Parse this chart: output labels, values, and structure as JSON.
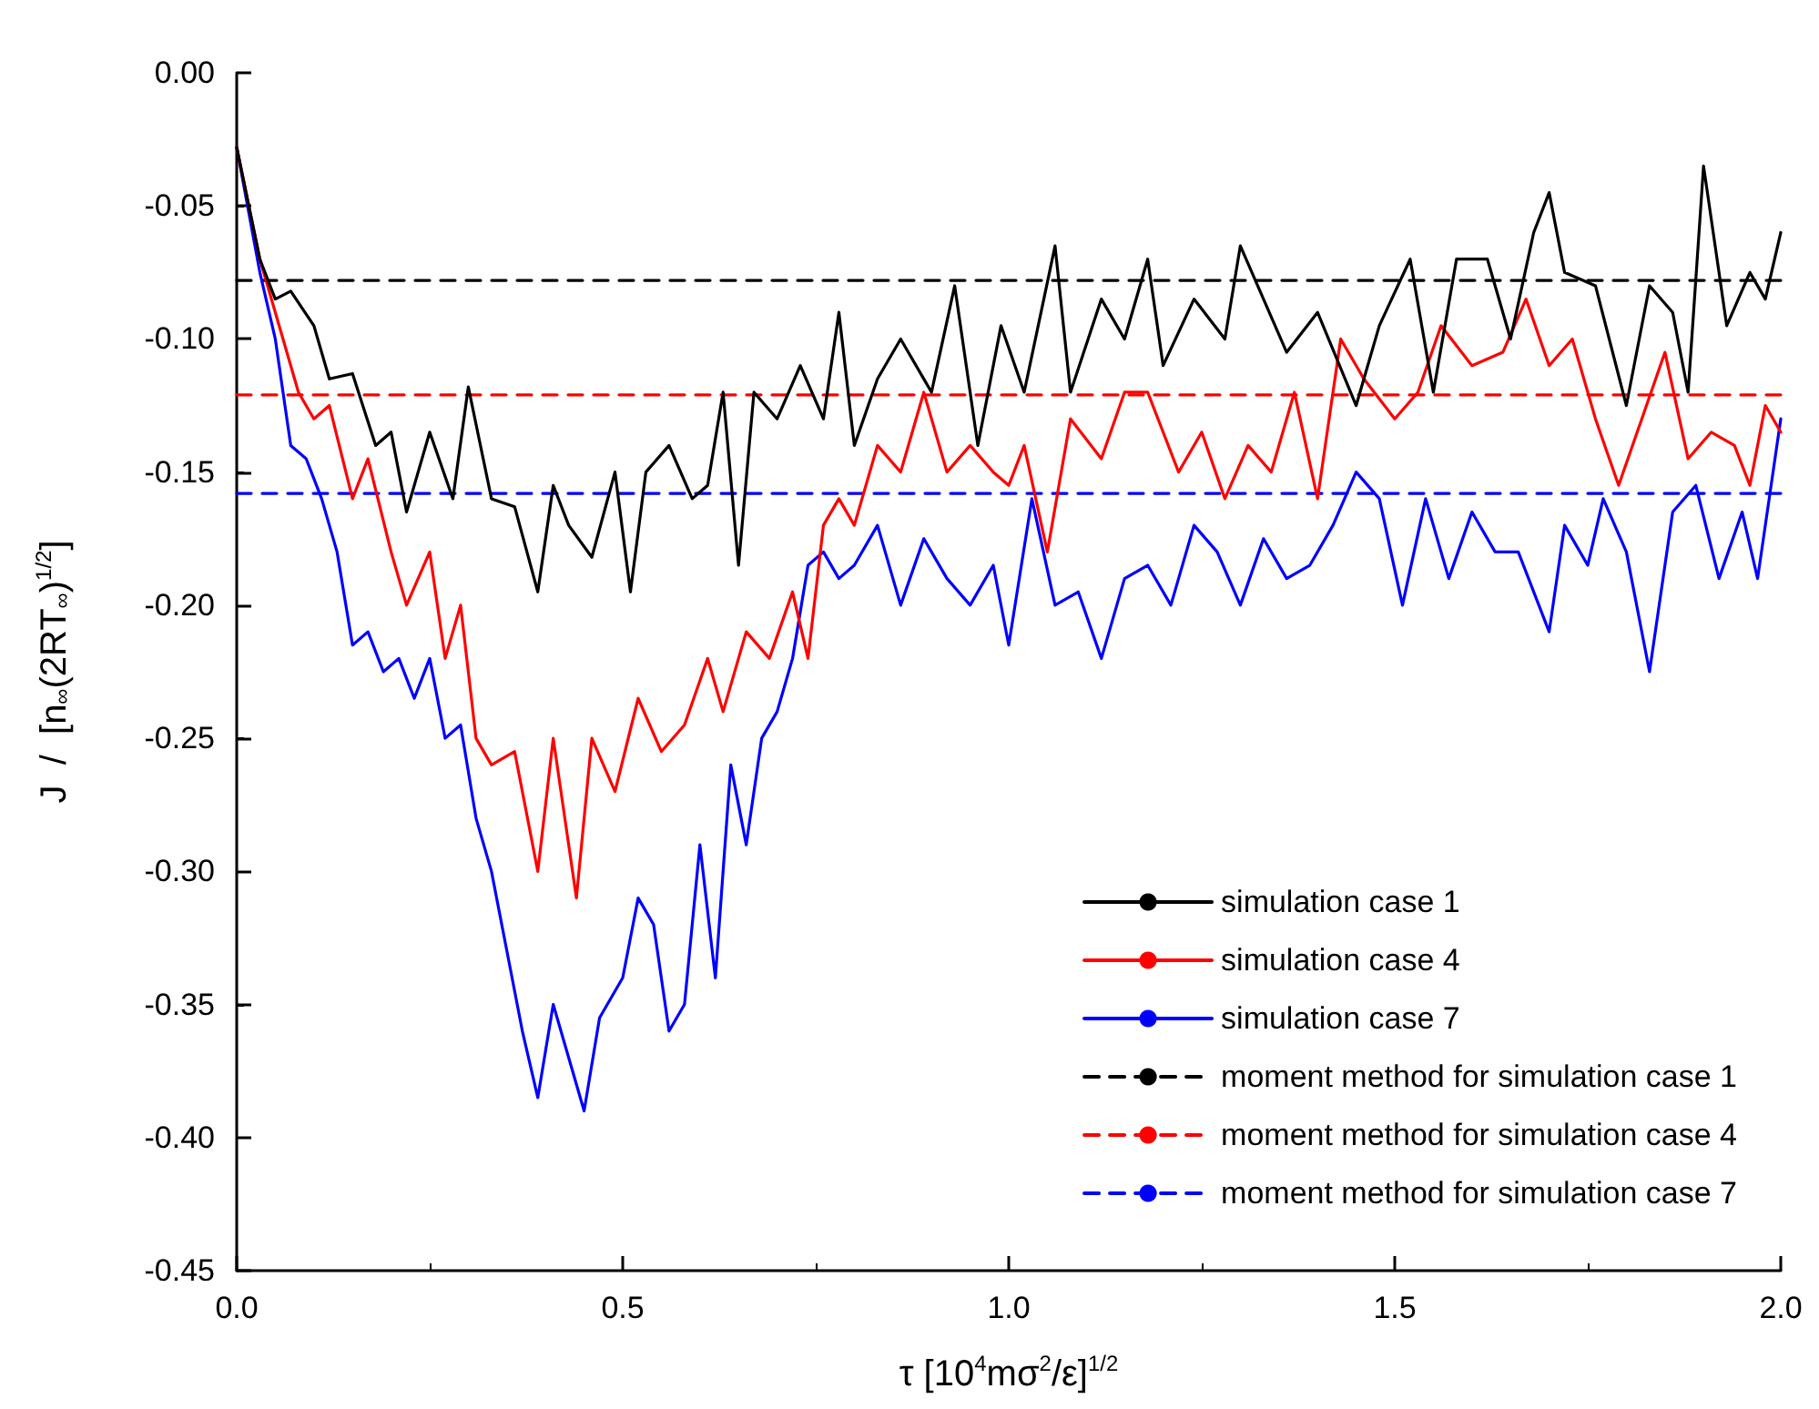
{
  "chart_data": {
    "type": "line",
    "xlabel": "τ [10$^{4}$mσ$^{2}$/ε]$^{1/2}$",
    "ylabel": "J  /  [n$_{∞}$(2RT$_{∞}$)$^{1/2}$]",
    "xlim": [
      0,
      2.0
    ],
    "xticks": [
      {
        "value": 0,
        "label": "0.0"
      },
      0.5,
      {
        "value": 1,
        "label": "1.0"
      },
      1.5,
      {
        "value": 2,
        "label": "2.0"
      }
    ],
    "ylim": [
      -0.45,
      0
    ],
    "yticks": [
      {
        "value": 0,
        "label": "0.00"
      },
      -0.05,
      {
        "value": -0.1,
        "label": "-0.10"
      },
      -0.15,
      {
        "value": -0.2,
        "label": "-0.20"
      },
      -0.25,
      {
        "value": -0.3,
        "label": "-0.30"
      },
      -0.35,
      {
        "value": -0.4,
        "label": "-0.40"
      },
      -0.45
    ],
    "grid": false,
    "legend": "bottom right",
    "marker": "none",
    "series": [
      {
        "name": "simulation case 1",
        "color": "#000000",
        "line_style": "solid",
        "x": [
          0,
          0.03,
          0.05,
          0.07,
          0.1,
          0.12,
          0.15,
          0.18,
          0.2,
          0.22,
          0.25,
          0.28,
          0.3,
          0.33,
          0.36,
          0.39,
          0.41,
          0.43,
          0.46,
          0.49,
          0.51,
          0.53,
          0.56,
          0.59,
          0.61,
          0.63,
          0.65,
          0.67,
          0.7,
          0.73,
          0.76,
          0.78,
          0.8,
          0.83,
          0.86,
          0.9,
          0.93,
          0.96,
          0.99,
          1.02,
          1.06,
          1.08,
          1.12,
          1.15,
          1.18,
          1.2,
          1.24,
          1.28,
          1.3,
          1.33,
          1.36,
          1.4,
          1.45,
          1.48,
          1.52,
          1.55,
          1.58,
          1.62,
          1.65,
          1.68,
          1.7,
          1.72,
          1.76,
          1.8,
          1.83,
          1.86,
          1.88,
          1.9,
          1.93,
          1.96,
          1.98,
          2.0
        ],
        "values": [
          -0.028,
          -0.07,
          -0.085,
          -0.082,
          -0.095,
          -0.115,
          -0.113,
          -0.14,
          -0.135,
          -0.165,
          -0.135,
          -0.16,
          -0.118,
          -0.16,
          -0.163,
          -0.195,
          -0.155,
          -0.17,
          -0.182,
          -0.15,
          -0.195,
          -0.15,
          -0.14,
          -0.16,
          -0.155,
          -0.12,
          -0.185,
          -0.12,
          -0.13,
          -0.11,
          -0.13,
          -0.09,
          -0.14,
          -0.115,
          -0.1,
          -0.12,
          -0.08,
          -0.14,
          -0.095,
          -0.12,
          -0.065,
          -0.12,
          -0.085,
          -0.1,
          -0.07,
          -0.11,
          -0.085,
          -0.1,
          -0.065,
          -0.085,
          -0.105,
          -0.09,
          -0.125,
          -0.095,
          -0.07,
          -0.12,
          -0.07,
          -0.07,
          -0.1,
          -0.06,
          -0.045,
          -0.075,
          -0.08,
          -0.125,
          -0.08,
          -0.09,
          -0.12,
          -0.035,
          -0.095,
          -0.075,
          -0.085,
          -0.06
        ]
      },
      {
        "name": "simulation case 4",
        "color": "#ff0000",
        "line_style": "solid",
        "x": [
          0,
          0.03,
          0.06,
          0.08,
          0.1,
          0.12,
          0.15,
          0.17,
          0.2,
          0.22,
          0.25,
          0.27,
          0.29,
          0.31,
          0.33,
          0.36,
          0.39,
          0.41,
          0.44,
          0.46,
          0.49,
          0.52,
          0.55,
          0.58,
          0.61,
          0.63,
          0.66,
          0.69,
          0.72,
          0.74,
          0.76,
          0.78,
          0.8,
          0.83,
          0.86,
          0.89,
          0.92,
          0.95,
          0.98,
          1.0,
          1.02,
          1.05,
          1.08,
          1.12,
          1.15,
          1.18,
          1.22,
          1.25,
          1.28,
          1.31,
          1.34,
          1.37,
          1.4,
          1.43,
          1.46,
          1.5,
          1.53,
          1.56,
          1.6,
          1.64,
          1.67,
          1.7,
          1.73,
          1.76,
          1.79,
          1.82,
          1.85,
          1.88,
          1.91,
          1.94,
          1.96,
          1.98,
          2.0
        ],
        "values": [
          -0.028,
          -0.07,
          -0.1,
          -0.12,
          -0.13,
          -0.125,
          -0.16,
          -0.145,
          -0.18,
          -0.2,
          -0.18,
          -0.22,
          -0.2,
          -0.25,
          -0.26,
          -0.255,
          -0.3,
          -0.25,
          -0.31,
          -0.25,
          -0.27,
          -0.235,
          -0.255,
          -0.245,
          -0.22,
          -0.24,
          -0.21,
          -0.22,
          -0.195,
          -0.22,
          -0.17,
          -0.16,
          -0.17,
          -0.14,
          -0.15,
          -0.12,
          -0.15,
          -0.14,
          -0.15,
          -0.155,
          -0.14,
          -0.18,
          -0.13,
          -0.145,
          -0.12,
          -0.12,
          -0.15,
          -0.135,
          -0.16,
          -0.14,
          -0.15,
          -0.12,
          -0.16,
          -0.1,
          -0.115,
          -0.13,
          -0.12,
          -0.095,
          -0.11,
          -0.105,
          -0.085,
          -0.11,
          -0.1,
          -0.13,
          -0.155,
          -0.13,
          -0.105,
          -0.145,
          -0.135,
          -0.14,
          -0.155,
          -0.125,
          -0.135
        ]
      },
      {
        "name": "simulation case 7",
        "color": "#0000ff",
        "line_style": "solid",
        "x": [
          0,
          0.03,
          0.05,
          0.07,
          0.09,
          0.11,
          0.13,
          0.15,
          0.17,
          0.19,
          0.21,
          0.23,
          0.25,
          0.27,
          0.29,
          0.31,
          0.33,
          0.35,
          0.37,
          0.39,
          0.41,
          0.43,
          0.45,
          0.47,
          0.5,
          0.52,
          0.54,
          0.56,
          0.58,
          0.6,
          0.62,
          0.64,
          0.66,
          0.68,
          0.7,
          0.72,
          0.74,
          0.76,
          0.78,
          0.8,
          0.83,
          0.86,
          0.89,
          0.92,
          0.95,
          0.98,
          1.0,
          1.03,
          1.06,
          1.09,
          1.12,
          1.15,
          1.18,
          1.21,
          1.24,
          1.27,
          1.3,
          1.33,
          1.36,
          1.39,
          1.42,
          1.45,
          1.48,
          1.51,
          1.54,
          1.57,
          1.6,
          1.63,
          1.66,
          1.7,
          1.72,
          1.75,
          1.77,
          1.8,
          1.83,
          1.86,
          1.89,
          1.92,
          1.95,
          1.97,
          2.0
        ],
        "values": [
          -0.028,
          -0.075,
          -0.1,
          -0.14,
          -0.145,
          -0.16,
          -0.18,
          -0.215,
          -0.21,
          -0.225,
          -0.22,
          -0.235,
          -0.22,
          -0.25,
          -0.245,
          -0.28,
          -0.3,
          -0.33,
          -0.36,
          -0.385,
          -0.35,
          -0.37,
          -0.39,
          -0.355,
          -0.34,
          -0.31,
          -0.32,
          -0.36,
          -0.35,
          -0.29,
          -0.34,
          -0.26,
          -0.29,
          -0.25,
          -0.24,
          -0.22,
          -0.185,
          -0.18,
          -0.19,
          -0.185,
          -0.17,
          -0.2,
          -0.175,
          -0.19,
          -0.2,
          -0.185,
          -0.215,
          -0.16,
          -0.2,
          -0.195,
          -0.22,
          -0.19,
          -0.185,
          -0.2,
          -0.17,
          -0.18,
          -0.2,
          -0.175,
          -0.19,
          -0.185,
          -0.17,
          -0.15,
          -0.16,
          -0.2,
          -0.16,
          -0.19,
          -0.165,
          -0.18,
          -0.18,
          -0.21,
          -0.17,
          -0.185,
          -0.16,
          -0.18,
          -0.225,
          -0.165,
          -0.155,
          -0.19,
          -0.165,
          -0.19,
          -0.13
        ]
      },
      {
        "name": "moment method for simulation case 1",
        "color": "#000000",
        "line_style": "dashed",
        "x": [
          0,
          2.0
        ],
        "values": [
          -0.078,
          -0.078
        ]
      },
      {
        "name": "moment method for simulation case 4",
        "color": "#ff0000",
        "line_style": "dashed",
        "x": [
          0,
          2.0
        ],
        "values": [
          -0.121,
          -0.121
        ]
      },
      {
        "name": "moment method for simulation case 7",
        "color": "#0000ff",
        "line_style": "dashed",
        "x": [
          0,
          2.0
        ],
        "values": [
          -0.158,
          -0.158
        ]
      }
    ]
  }
}
